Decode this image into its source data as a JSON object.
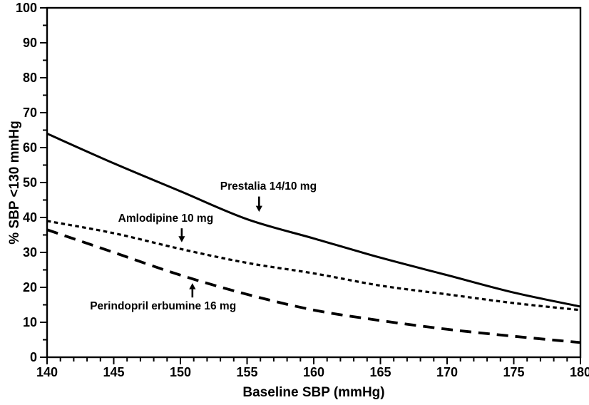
{
  "window": {
    "background_color": "#ffffff",
    "foreground_color": "#000000"
  },
  "chart_data": {
    "type": "line",
    "title": "",
    "xlabel": "Baseline SBP (mmHg)",
    "ylabel": "% SBP <130 mmHg",
    "xlim": [
      140,
      180
    ],
    "ylim": [
      0,
      100
    ],
    "x_tick_labels": [
      "140",
      "145",
      "150",
      "155",
      "160",
      "165",
      "170",
      "175",
      "180"
    ],
    "y_tick_labels": [
      "0",
      "10",
      "20",
      "30",
      "40",
      "50",
      "60",
      "70",
      "80",
      "90",
      "100"
    ],
    "x_major_step": 5,
    "x_minor_step": 1,
    "y_major_step": 10,
    "y_minor_step": 5,
    "grid": false,
    "legend_position": "inline-annotations",
    "line_color": "#000000",
    "x": [
      140,
      145,
      150,
      155,
      160,
      165,
      170,
      175,
      180
    ],
    "series": [
      {
        "name": "Prestalia 14/10 mg",
        "line_style": "solid",
        "values": [
          64,
          55.5,
          47.5,
          39.5,
          34,
          28.5,
          23.5,
          18.5,
          14.5
        ]
      },
      {
        "name": "Amlodipine 10 mg",
        "line_style": "dotted",
        "values": [
          39,
          35.5,
          31,
          27,
          24,
          20.5,
          18,
          15.5,
          13.5
        ]
      },
      {
        "name": "Perindopril erbumine 16 mg",
        "line_style": "dashed",
        "values": [
          36.5,
          30,
          23.5,
          18,
          13.5,
          10.5,
          8,
          6,
          4.2
        ]
      }
    ],
    "annotations": [
      {
        "text": "Prestalia 14/10 mg",
        "label_x": 156.6,
        "label_y": 48.8,
        "arrow": {
          "x": 155.9,
          "tail_y": 46.0,
          "tip_y": 41.6,
          "direction": "down"
        }
      },
      {
        "text": "Amlodipine 10 mg",
        "label_x": 148.9,
        "label_y": 39.6,
        "arrow": {
          "x": 150.1,
          "tail_y": 36.9,
          "tip_y": 32.9,
          "direction": "down"
        }
      },
      {
        "text": "Perindopril erbumine 16 mg",
        "label_x": 148.7,
        "label_y": 14.5,
        "arrow": {
          "x": 150.9,
          "tail_y": 17.1,
          "tip_y": 21.2,
          "direction": "up"
        }
      }
    ]
  }
}
